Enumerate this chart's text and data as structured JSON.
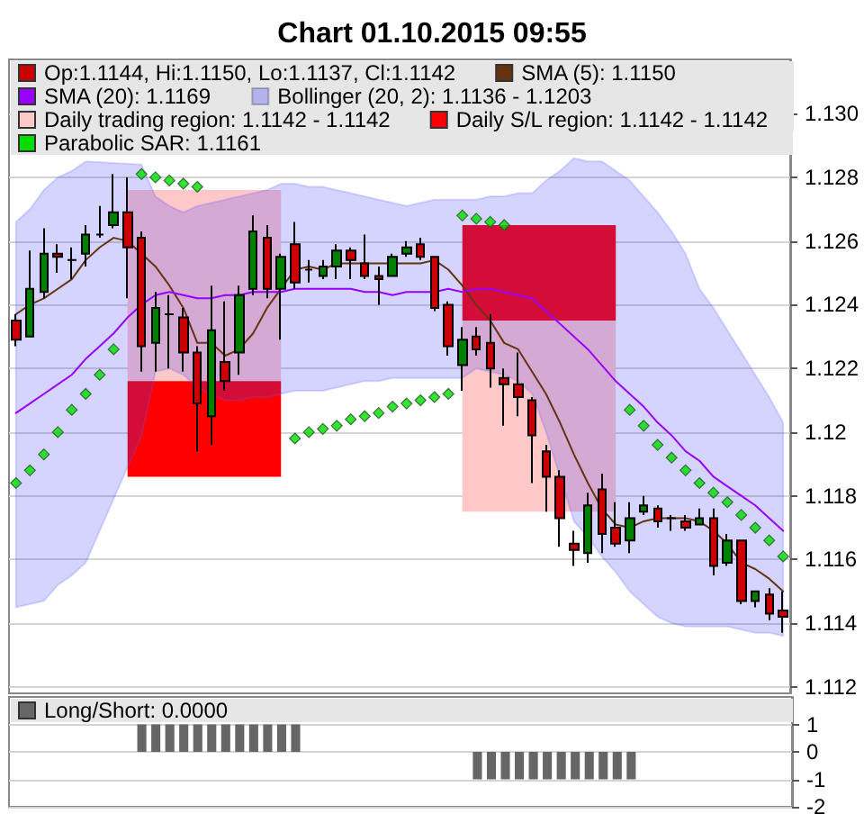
{
  "chart_data": [
    {
      "type": "candlestick",
      "title": "Chart 01.10.2015 09:55",
      "categories": [
        null,
        null,
        null,
        null,
        null,
        null,
        null,
        null,
        null,
        null,
        null,
        null,
        null,
        null,
        null,
        null,
        null,
        null,
        null,
        null,
        null,
        null,
        null,
        null,
        null,
        null,
        null,
        null,
        null,
        null,
        null,
        null,
        null,
        null,
        null,
        null,
        null,
        null,
        null,
        null,
        null,
        null,
        null,
        null,
        null,
        null,
        null,
        null,
        null,
        null,
        null,
        null,
        null,
        null,
        null,
        null
      ],
      "ylim": [
        1.1118,
        1.1317
      ],
      "yticks": [
        1.112,
        1.114,
        1.116,
        1.118,
        1.12,
        1.122,
        1.124,
        1.126,
        1.128,
        {
          "value": 1.13,
          "label": "1.130"
        }
      ],
      "grid": "y",
      "legend": "top",
      "tick_labels": "y",
      "series": [
        {
          "name": "Op:1.1144, Hi:1.1150, Lo:1.1137, Cl:1.1142",
          "color": "#cc0000",
          "colors": [
            "#cc0000",
            "#008000",
            "#008000",
            "#cc0000",
            "#000000",
            "#008000",
            "#000000",
            "#008000",
            "#cc0000",
            "#cc0000",
            "#008000",
            "#000000",
            "#cc0000",
            "#cc0000",
            "#008000",
            "#cc0000",
            "#008000",
            "#008000",
            "#cc0000",
            "#008000",
            "#cc0000",
            "#000000",
            "#008000",
            "#008000",
            "#cc0000",
            "#cc0000",
            "#cc0000",
            "#008000",
            "#008000",
            "#cc0000",
            "#cc0000",
            "#cc0000",
            "#008000",
            "#cc0000",
            "#cc0000",
            "#cc0000",
            "#cc0000",
            "#cc0000",
            "#cc0000",
            "#cc0000",
            "#cc0000",
            "#008000",
            "#cc0000",
            "#cc0000",
            "#008000",
            "#008000",
            "#cc0000",
            "#000000",
            "#cc0000",
            "#008000",
            "#cc0000",
            "#008000",
            "#cc0000",
            "#008000",
            "#cc0000",
            "#cc0000"
          ],
          "ohlc": [
            [
              1.1235,
              1.1237,
              1.1227,
              1.1229
            ],
            [
              1.123,
              1.1257,
              1.123,
              1.1245
            ],
            [
              1.1244,
              1.1264,
              1.1242,
              1.1256
            ],
            [
              1.1256,
              1.1259,
              1.125,
              1.1255
            ],
            [
              1.1254,
              1.1258,
              1.1248,
              1.1254
            ],
            [
              1.1256,
              1.1265,
              1.1252,
              1.1262
            ],
            [
              1.1262,
              1.1271,
              1.1261,
              1.1262
            ],
            [
              1.1265,
              1.1281,
              1.1264,
              1.1269
            ],
            [
              1.1269,
              1.128,
              1.1242,
              1.1258
            ],
            [
              1.1261,
              1.1263,
              1.1219,
              1.1227
            ],
            [
              1.1228,
              1.1244,
              1.1219,
              1.1239
            ],
            [
              1.1237,
              1.1243,
              1.122,
              1.1237
            ],
            [
              1.1236,
              1.1239,
              1.1219,
              1.1225
            ],
            [
              1.1225,
              1.1227,
              1.1194,
              1.1209
            ],
            [
              1.1205,
              1.1246,
              1.1196,
              1.1232
            ],
            [
              1.1222,
              1.1241,
              1.1213,
              1.1216
            ],
            [
              1.1225,
              1.1246,
              1.1218,
              1.1243
            ],
            [
              1.1245,
              1.1268,
              1.1243,
              1.1263
            ],
            [
              1.1261,
              1.1265,
              1.1242,
              1.1245
            ],
            [
              1.1245,
              1.1256,
              1.1229,
              1.1255
            ],
            [
              1.1259,
              1.1266,
              1.1245,
              1.1247
            ],
            [
              1.1251,
              1.1254,
              1.1247,
              1.1251
            ],
            [
              1.1249,
              1.1254,
              1.1248,
              1.1252
            ],
            [
              1.1252,
              1.1259,
              1.1248,
              1.1257
            ],
            [
              1.1257,
              1.1258,
              1.1248,
              1.1254
            ],
            [
              1.1253,
              1.1262,
              1.1248,
              1.1249
            ],
            [
              1.1249,
              1.1252,
              1.124,
              1.1248
            ],
            [
              1.1249,
              1.1256,
              1.1249,
              1.1255
            ],
            [
              1.1256,
              1.126,
              1.1255,
              1.1258
            ],
            [
              1.1259,
              1.1261,
              1.1254,
              1.1255
            ],
            [
              1.1255,
              1.1255,
              1.1238,
              1.1239
            ],
            [
              1.124,
              1.1241,
              1.1224,
              1.1227
            ],
            [
              1.1221,
              1.1233,
              1.1213,
              1.1229
            ],
            [
              1.123,
              1.1233,
              1.1224,
              1.1226
            ],
            [
              1.1228,
              1.1237,
              1.1214,
              1.122
            ],
            [
              1.1217,
              1.122,
              1.1202,
              1.1215
            ],
            [
              1.1215,
              1.1225,
              1.1205,
              1.1211
            ],
            [
              1.121,
              1.1211,
              1.1184,
              1.1199
            ],
            [
              1.1194,
              1.1196,
              1.1175,
              1.1186
            ],
            [
              1.1186,
              1.1188,
              1.1164,
              1.1173
            ],
            [
              1.1165,
              1.1169,
              1.1158,
              1.1163
            ],
            [
              1.1162,
              1.1181,
              1.1159,
              1.1177
            ],
            [
              1.1182,
              1.1187,
              1.1162,
              1.1168
            ],
            [
              1.117,
              1.1178,
              1.1164,
              1.1165
            ],
            [
              1.1166,
              1.1178,
              1.1162,
              1.1173
            ],
            [
              1.1175,
              1.118,
              1.1174,
              1.1177
            ],
            [
              1.1176,
              1.1177,
              1.117,
              1.1172
            ],
            [
              1.1173,
              1.1174,
              1.1169,
              1.1173
            ],
            [
              1.1172,
              1.1174,
              1.1169,
              1.117
            ],
            [
              1.1171,
              1.1176,
              1.1171,
              1.1173
            ],
            [
              1.1173,
              1.1176,
              1.1155,
              1.1158
            ],
            [
              1.1159,
              1.1168,
              1.1158,
              1.1166
            ],
            [
              1.1166,
              1.1166,
              1.1146,
              1.1147
            ],
            [
              1.1147,
              1.115,
              1.1145,
              1.115
            ],
            [
              1.1149,
              1.1151,
              1.1141,
              1.1143
            ],
            [
              1.1144,
              1.115,
              1.1137,
              1.1142
            ]
          ]
        },
        {
          "type": "line",
          "name": "SMA (5): 1.1150",
          "color": "#663311",
          "values": [
            1.1237,
            1.124,
            1.1242,
            1.1245,
            1.1248,
            1.1254,
            1.1258,
            1.1261,
            1.126,
            1.1256,
            1.1252,
            1.1246,
            1.1239,
            1.1228,
            1.1228,
            1.1224,
            1.1226,
            1.1231,
            1.1239,
            1.1245,
            1.1251,
            1.1252,
            1.1251,
            1.1253,
            1.1253,
            1.1253,
            1.1253,
            1.1253,
            1.1253,
            1.1253,
            1.1254,
            1.1251,
            1.1246,
            1.124,
            1.1235,
            1.1228,
            1.1226,
            1.1219,
            1.1212,
            1.1203,
            1.1193,
            1.1184,
            1.1176,
            1.1171,
            1.117,
            1.1172,
            1.1173,
            1.1173,
            1.1173,
            1.1172,
            1.1169,
            1.1165,
            1.1159,
            1.1157,
            1.1154,
            1.115
          ]
        },
        {
          "type": "line",
          "name": "SMA (20): 1.1169",
          "color": "#9900ff",
          "values": [
            1.1206,
            1.1209,
            1.1212,
            1.1215,
            1.1218,
            1.1223,
            1.1227,
            1.1231,
            1.1236,
            1.124,
            1.1243,
            1.1244,
            1.1243,
            1.1242,
            1.1242,
            1.1243,
            1.1243,
            1.1244,
            1.1244,
            1.1244,
            1.1245,
            1.1245,
            1.1245,
            1.1245,
            1.1245,
            1.1244,
            1.1244,
            1.1243,
            1.1244,
            1.1244,
            1.1244,
            1.1245,
            1.1244,
            1.1245,
            1.1245,
            1.1244,
            1.1243,
            1.1242,
            1.1238,
            1.1234,
            1.123,
            1.1226,
            1.1221,
            1.1216,
            1.1212,
            1.1208,
            1.1203,
            1.1199,
            1.1194,
            1.1191,
            1.1186,
            1.1183,
            1.118,
            1.1177,
            1.1173,
            1.1169
          ]
        },
        {
          "type": "area",
          "name": "Bollinger (20, 2): 1.1136 - 1.1203",
          "color": "#3c3cff",
          "lower": [
            1.1145,
            1.1146,
            1.1147,
            1.1152,
            1.1155,
            1.1159,
            null,
            null,
            null,
            1.1199,
            1.1219,
            1.122,
            1.1218,
            1.1214,
            1.1212,
            1.121,
            1.121,
            1.1211,
            1.1211,
            1.1212,
            1.1213,
            1.1213,
            1.1213,
            1.1214,
            1.1215,
            1.1216,
            1.1216,
            1.1217,
            1.1217,
            1.1217,
            1.1217,
            1.1217,
            1.1217,
            1.122,
            1.1219,
            1.1218,
            1.1216,
            1.1212,
            1.12,
            1.1186,
            1.1172,
            1.1167,
            1.1161,
            1.1156,
            1.115,
            1.1146,
            1.1142,
            1.114,
            1.1139,
            1.1139,
            1.1139,
            1.1139,
            1.1138,
            1.1137,
            1.1137,
            1.1136
          ],
          "values": [
            null,
            null,
            null,
            null,
            null,
            null,
            null,
            null,
            null,
            null,
            null,
            null,
            null,
            null,
            null,
            null,
            null,
            null,
            null,
            null,
            null,
            null,
            null,
            null,
            null,
            null,
            null,
            null,
            null,
            null,
            null,
            null,
            null,
            null,
            null,
            null,
            null,
            null,
            null,
            null,
            null,
            null,
            null,
            null,
            null,
            null,
            null,
            null,
            null,
            null,
            null,
            null,
            null,
            null,
            null,
            null
          ],
          "upper": [
            1.1266,
            1.127,
            1.1276,
            1.128,
            1.1282,
            1.1285,
            null,
            null,
            null,
            1.1284,
            1.1274,
            1.1271,
            1.1269,
            1.1271,
            1.1272,
            1.1273,
            1.1274,
            1.1275,
            1.1276,
            1.1278,
            1.1278,
            1.1277,
            1.1277,
            1.1276,
            1.1275,
            1.1274,
            1.1273,
            1.1272,
            1.1271,
            1.1272,
            1.1273,
            1.1273,
            1.1273,
            1.1273,
            1.1274,
            1.1274,
            1.1275,
            1.1275,
            1.1279,
            1.1282,
            1.1286,
            1.1285,
            1.1285,
            1.1282,
            1.1279,
            1.1274,
            1.1269,
            1.1263,
            1.1256,
            1.1245,
            1.1239,
            1.1232,
            1.1225,
            1.1218,
            1.1211,
            1.1203
          ]
        },
        {
          "type": "area",
          "name": "Daily trading region: 1.1142 - 1.1142",
          "color": "#ffc8c8",
          "lower": [
            null,
            null,
            null,
            null,
            null,
            null,
            null,
            null,
            1.1216,
            1.1216,
            1.1216,
            1.1216,
            1.1216,
            1.1216,
            1.1216,
            1.1216,
            1.1216,
            1.1216,
            1.1216,
            1.1216,
            null,
            null,
            null,
            null,
            null,
            null,
            null,
            null,
            null,
            null,
            null,
            null,
            1.1175,
            1.1175,
            1.1175,
            1.1175,
            1.1175,
            1.1175,
            1.1175,
            1.1175,
            1.1175,
            1.1175,
            1.1175,
            1.1175,
            null,
            null,
            null,
            null,
            null,
            null,
            null,
            null,
            null,
            null,
            null,
            null
          ],
          "values": [
            null,
            null,
            null,
            null,
            null,
            null,
            null,
            null,
            null,
            null,
            null,
            null,
            null,
            null,
            null,
            null,
            null,
            null,
            null,
            null,
            null,
            null,
            null,
            null,
            null,
            null,
            null,
            null,
            null,
            null,
            null,
            null,
            null,
            null,
            null,
            null,
            null,
            null,
            null,
            null,
            null,
            null,
            null,
            null,
            null,
            null,
            null,
            null,
            null,
            null,
            null,
            null,
            null,
            null,
            null,
            null
          ],
          "upper": [
            null,
            null,
            null,
            null,
            null,
            null,
            null,
            null,
            1.1276,
            1.1276,
            1.1276,
            1.1276,
            1.1276,
            1.1276,
            1.1276,
            1.1276,
            1.1276,
            1.1276,
            1.1276,
            1.1276,
            null,
            null,
            null,
            null,
            null,
            null,
            null,
            null,
            null,
            null,
            null,
            null,
            1.1235,
            1.1235,
            1.1235,
            1.1235,
            1.1235,
            1.1235,
            1.1235,
            1.1235,
            1.1235,
            1.1235,
            1.1235,
            1.1235,
            null,
            null,
            null,
            null,
            null,
            null,
            null,
            null,
            null,
            null,
            null,
            null
          ]
        },
        {
          "type": "area",
          "name": "Daily S/L region: 1.1142 - 1.1142",
          "color": "#ff0000",
          "lower": [
            null,
            null,
            null,
            null,
            null,
            null,
            null,
            null,
            1.1186,
            1.1186,
            1.1186,
            1.1186,
            1.1186,
            1.1186,
            1.1186,
            1.1186,
            1.1186,
            1.1186,
            1.1186,
            1.1186,
            null,
            null,
            null,
            null,
            null,
            null,
            null,
            null,
            null,
            null,
            null,
            null,
            1.1235,
            1.1235,
            1.1235,
            1.1235,
            1.1235,
            1.1235,
            1.1235,
            1.1235,
            1.1235,
            1.1235,
            1.1235,
            1.1235,
            null,
            null,
            null,
            null,
            null,
            null,
            null,
            null,
            null,
            null,
            null,
            null
          ],
          "values": [
            null,
            null,
            null,
            null,
            null,
            null,
            null,
            null,
            null,
            null,
            null,
            null,
            null,
            null,
            null,
            null,
            null,
            null,
            null,
            null,
            null,
            null,
            null,
            null,
            null,
            null,
            null,
            null,
            null,
            null,
            null,
            null,
            null,
            null,
            null,
            null,
            null,
            null,
            null,
            null,
            null,
            null,
            null,
            null,
            null,
            null,
            null,
            null,
            null,
            null,
            null,
            null,
            null,
            null,
            null,
            null
          ],
          "upper": [
            null,
            null,
            null,
            null,
            null,
            null,
            null,
            null,
            1.1216,
            1.1216,
            1.1216,
            1.1216,
            1.1216,
            1.1216,
            1.1216,
            1.1216,
            1.1216,
            1.1216,
            1.1216,
            1.1216,
            null,
            null,
            null,
            null,
            null,
            null,
            null,
            null,
            null,
            null,
            null,
            null,
            1.1265,
            1.1265,
            1.1265,
            1.1265,
            1.1265,
            1.1265,
            1.1265,
            1.1265,
            1.1265,
            1.1265,
            1.1265,
            1.1265,
            null,
            null,
            null,
            null,
            null,
            null,
            null,
            null,
            null,
            null,
            null,
            null
          ]
        },
        {
          "type": "scatter",
          "name": "Parabolic SAR: 1.1161",
          "color": "#00dd00",
          "marker": "diamond",
          "values": [
            1.1184,
            1.1188,
            1.1193,
            1.12,
            1.1207,
            1.1212,
            1.1218,
            1.1226,
            null,
            1.1281,
            1.128,
            1.1279,
            1.1278,
            1.1277,
            null,
            null,
            null,
            null,
            null,
            null,
            1.1198,
            1.12,
            1.1201,
            1.1202,
            1.1204,
            1.1205,
            1.1206,
            1.1208,
            1.1209,
            1.121,
            1.1211,
            1.1212,
            1.1268,
            1.1267,
            1.1266,
            1.1265,
            null,
            null,
            null,
            null,
            null,
            null,
            null,
            null,
            1.1207,
            1.1202,
            1.1196,
            1.1192,
            1.1188,
            1.1184,
            1.1181,
            1.1178,
            1.1174,
            1.117,
            1.1166,
            1.1161
          ]
        }
      ]
    },
    {
      "type": "bar",
      "categories": [
        null,
        null,
        null,
        null,
        null,
        null,
        null,
        null,
        null,
        null,
        null,
        null,
        null,
        null,
        null,
        null,
        null,
        null,
        null,
        null,
        null,
        null,
        null,
        null,
        null,
        null,
        null,
        null,
        null,
        null,
        null,
        null,
        null,
        null,
        null,
        null,
        null,
        null,
        null,
        null,
        null,
        null,
        null,
        null,
        null,
        null,
        null,
        null,
        null,
        null,
        null,
        null,
        null,
        null,
        null,
        null
      ],
      "ylim": [
        -2,
        2
      ],
      "yticks": [
        -2,
        -1,
        0,
        1
      ],
      "grid": "y",
      "legend": "top",
      "tick_labels": "y",
      "series": [
        {
          "name": "Long/Short: 0.0000",
          "color": "#666666",
          "values": [
            0,
            0,
            0,
            0,
            0,
            0,
            0,
            0,
            0,
            1,
            1,
            1,
            1,
            1,
            1,
            1,
            1,
            1,
            1,
            1,
            1,
            0,
            0,
            0,
            0,
            0,
            0,
            0,
            0,
            0,
            0,
            0,
            0,
            -1,
            -1,
            -1,
            -1,
            -1,
            -1,
            -1,
            -1,
            -1,
            -1,
            -1,
            -1,
            0,
            0,
            0,
            0,
            0,
            0,
            0,
            0,
            0,
            0,
            0
          ]
        }
      ]
    }
  ]
}
